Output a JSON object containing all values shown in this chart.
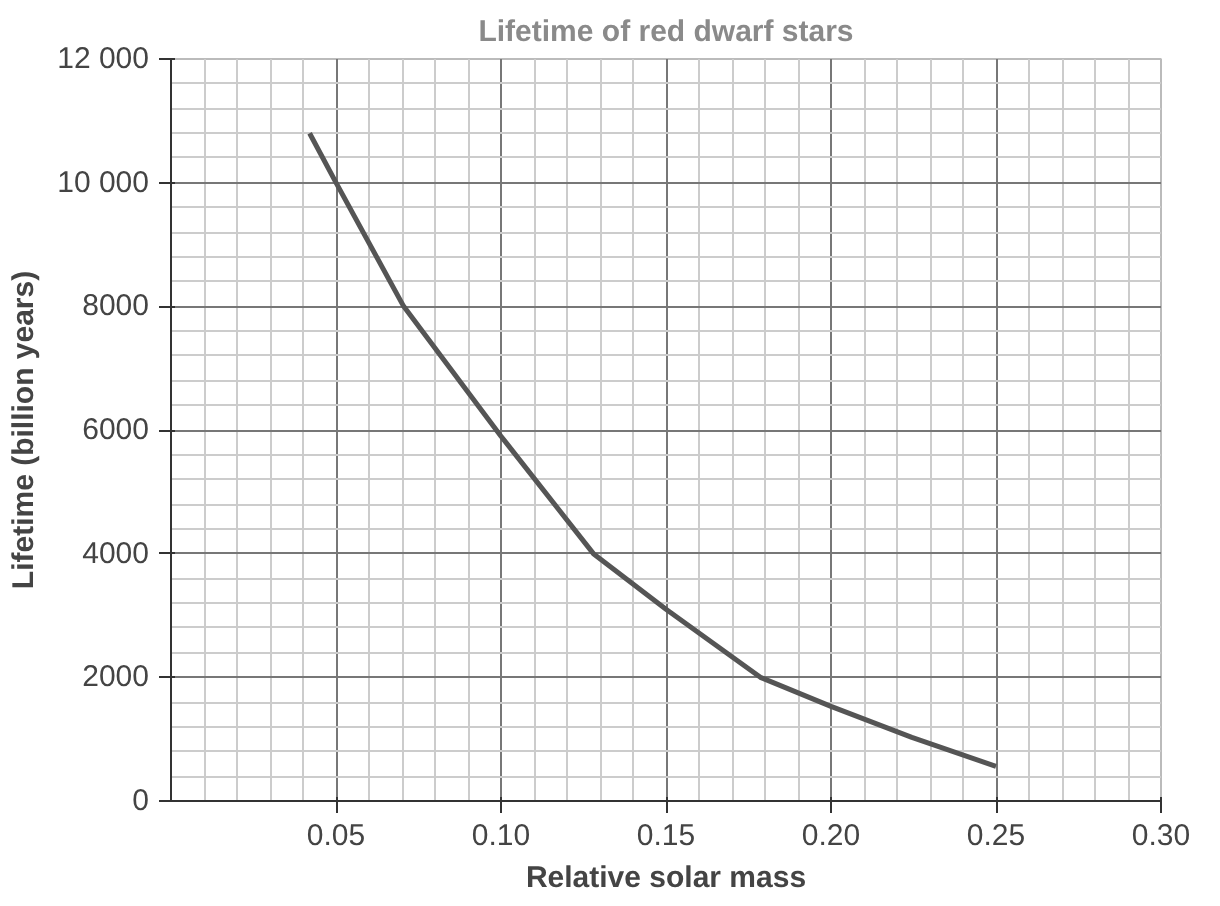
{
  "chart_data": {
    "type": "line",
    "title": "Lifetime of red dwarf stars",
    "xlabel": "Relative solar mass",
    "ylabel": "Lifetime (billion years)",
    "x": [
      0.042,
      0.05,
      0.0705,
      0.1,
      0.128,
      0.15,
      0.1786,
      0.2,
      0.2245,
      0.25
    ],
    "series": [
      {
        "color": "#555555",
        "values": [
          10800,
          10000,
          8000,
          5900,
          4000,
          3100,
          2000,
          1530,
          1030,
          560
        ]
      }
    ],
    "xlim": [
      0,
      0.3
    ],
    "ylim": [
      0,
      12000
    ],
    "xticks": [
      0.05,
      {
        "value": 0.1,
        "label": "0.10"
      },
      0.15,
      {
        "value": 0.2,
        "label": "0.20"
      },
      0.25,
      {
        "value": 0.3,
        "label": "0.30"
      }
    ],
    "yticks": [
      0,
      2000,
      4000,
      6000,
      8000,
      {
        "value": 10000,
        "label": "10 000"
      },
      {
        "value": 12000,
        "label": "12 000"
      }
    ],
    "grid": true,
    "marker": "none",
    "line_style": "solid"
  }
}
